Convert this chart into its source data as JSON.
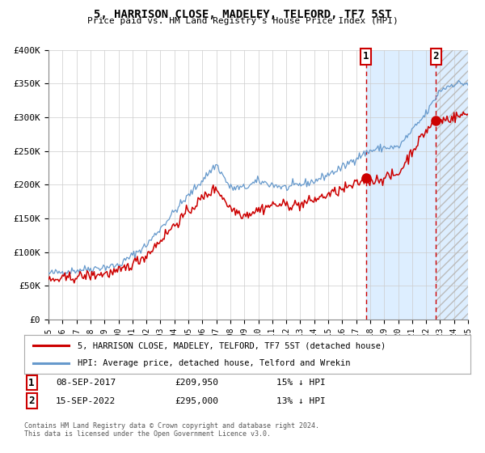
{
  "title": "5, HARRISON CLOSE, MADELEY, TELFORD, TF7 5ST",
  "subtitle": "Price paid vs. HM Land Registry's House Price Index (HPI)",
  "xlim": [
    1995,
    2025
  ],
  "ylim": [
    0,
    400000
  ],
  "yticks": [
    0,
    50000,
    100000,
    150000,
    200000,
    250000,
    300000,
    350000,
    400000
  ],
  "ytick_labels": [
    "£0",
    "£50K",
    "£100K",
    "£150K",
    "£200K",
    "£250K",
    "£300K",
    "£350K",
    "£400K"
  ],
  "xticks": [
    1995,
    1996,
    1997,
    1998,
    1999,
    2000,
    2001,
    2002,
    2003,
    2004,
    2005,
    2006,
    2007,
    2008,
    2009,
    2010,
    2011,
    2012,
    2013,
    2014,
    2015,
    2016,
    2017,
    2018,
    2019,
    2020,
    2021,
    2022,
    2023,
    2024,
    2025
  ],
  "sale1_x": 2017.69,
  "sale1_y": 209950,
  "sale1_label": "1",
  "sale1_date": "08-SEP-2017",
  "sale1_price": "£209,950",
  "sale1_hpi": "15% ↓ HPI",
  "sale2_x": 2022.71,
  "sale2_y": 295000,
  "sale2_label": "2",
  "sale2_date": "15-SEP-2022",
  "sale2_price": "£295,000",
  "sale2_hpi": "13% ↓ HPI",
  "red_line_color": "#cc0000",
  "blue_line_color": "#6699cc",
  "shaded_region_color": "#ddeeff",
  "background_color": "#ffffff",
  "grid_color": "#cccccc",
  "legend1_label": "5, HARRISON CLOSE, MADELEY, TELFORD, TF7 5ST (detached house)",
  "legend2_label": "HPI: Average price, detached house, Telford and Wrekin",
  "footnote": "Contains HM Land Registry data © Crown copyright and database right 2024.\nThis data is licensed under the Open Government Licence v3.0."
}
